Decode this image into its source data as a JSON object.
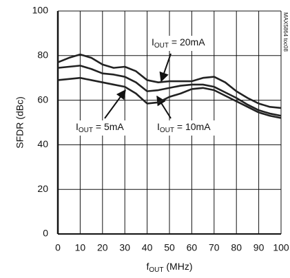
{
  "chart_data": {
    "type": "line",
    "ylabel": "SFDR (dBc)",
    "xlabel": {
      "main": "f",
      "sub": "OUT",
      "rest": " (MHz)"
    },
    "note": "MAX5864 toc08",
    "x": [
      0,
      5,
      10,
      15,
      20,
      25,
      30,
      35,
      40,
      45,
      50,
      55,
      60,
      65,
      70,
      75,
      80,
      85,
      90,
      95,
      100
    ],
    "series": [
      {
        "color": "#222222",
        "values": [
          77,
          79,
          80.5,
          79,
          76,
          74.5,
          75,
          73,
          69,
          68,
          68.5,
          68.5,
          68.5,
          70,
          70.5,
          68,
          64,
          61,
          58.5,
          57,
          56.5
        ]
      },
      {
        "color": "#222222",
        "values": [
          74.5,
          75,
          75.5,
          74,
          72,
          71.5,
          70.5,
          68,
          64,
          64.5,
          65.5,
          66.5,
          67,
          67,
          66,
          63.5,
          61,
          58,
          55.5,
          54,
          53
        ]
      },
      {
        "color": "#222222",
        "values": [
          69,
          69.5,
          70,
          69,
          68,
          67,
          66,
          63,
          58.5,
          59,
          61.5,
          63,
          65,
          65.5,
          64.5,
          62,
          59.5,
          57,
          54.5,
          53,
          52
        ]
      }
    ],
    "annotations": [
      {
        "main": "I",
        "sub": "OUT",
        "rest": " = 20mA"
      },
      {
        "main": "I",
        "sub": "OUT",
        "rest": " = 5mA"
      },
      {
        "main": "I",
        "sub": "OUT",
        "rest": " = 10mA"
      }
    ],
    "xlim": [
      0,
      100
    ],
    "xticks": [
      0,
      10,
      20,
      30,
      40,
      50,
      60,
      70,
      80,
      90,
      100
    ],
    "ylim": [
      0,
      100
    ],
    "yticks": [
      0,
      20,
      40,
      60,
      80,
      100
    ],
    "grid": true
  }
}
